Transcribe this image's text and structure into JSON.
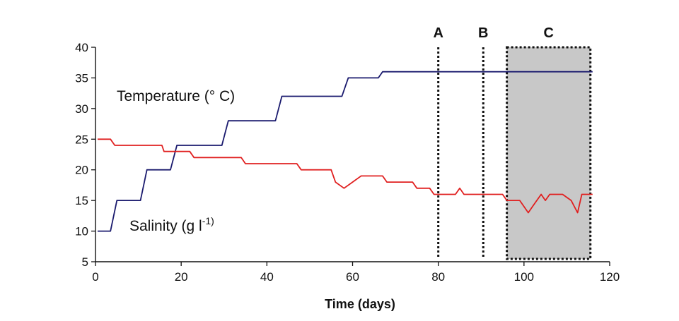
{
  "chart_data": {
    "type": "line",
    "xlabel": "Time (days)",
    "ylabel": "",
    "xlim": [
      0,
      120
    ],
    "ylim": [
      5,
      40
    ],
    "xticks": [
      0,
      20,
      40,
      60,
      80,
      100,
      120
    ],
    "yticks": [
      5,
      10,
      15,
      20,
      25,
      30,
      35,
      40
    ],
    "grid": false,
    "series": [
      {
        "name": "Temperature (° C)",
        "color": "#1a1a6e",
        "points": [
          [
            0.5,
            10
          ],
          [
            3.5,
            10
          ],
          [
            5,
            15
          ],
          [
            10.5,
            15
          ],
          [
            12,
            20
          ],
          [
            17.5,
            20
          ],
          [
            19,
            24
          ],
          [
            29.5,
            24
          ],
          [
            31,
            28
          ],
          [
            42,
            28
          ],
          [
            43.5,
            32
          ],
          [
            57.5,
            32
          ],
          [
            59,
            35
          ],
          [
            66,
            35
          ],
          [
            67,
            36
          ],
          [
            116,
            36
          ]
        ],
        "label_text": "Temperature (° C)"
      },
      {
        "name": "Salinity (g l-1)",
        "color": "#e02020",
        "points": [
          [
            0.5,
            25
          ],
          [
            3.5,
            25
          ],
          [
            4.5,
            24
          ],
          [
            15.5,
            24
          ],
          [
            16,
            23
          ],
          [
            22,
            23
          ],
          [
            23,
            22
          ],
          [
            34,
            22
          ],
          [
            35,
            21
          ],
          [
            47,
            21
          ],
          [
            48,
            20
          ],
          [
            55,
            20
          ],
          [
            56,
            18
          ],
          [
            58,
            17
          ],
          [
            60,
            18
          ],
          [
            62,
            19
          ],
          [
            67,
            19
          ],
          [
            68,
            18
          ],
          [
            74,
            18
          ],
          [
            75,
            17
          ],
          [
            78,
            17
          ],
          [
            79,
            16
          ],
          [
            84,
            16
          ],
          [
            85,
            17
          ],
          [
            86,
            16
          ],
          [
            90,
            16
          ],
          [
            91,
            16
          ],
          [
            95,
            16
          ],
          [
            96,
            15
          ],
          [
            99,
            15
          ],
          [
            101,
            13
          ],
          [
            102,
            14
          ],
          [
            104,
            16
          ],
          [
            105,
            15
          ],
          [
            106,
            16
          ],
          [
            109,
            16
          ],
          [
            111,
            15
          ],
          [
            112.5,
            13
          ],
          [
            113.5,
            16
          ],
          [
            116,
            16
          ]
        ],
        "label_text": "Salinity (g l",
        "label_sup": "-1)"
      }
    ],
    "markers": [
      {
        "label": "A",
        "x": 80
      },
      {
        "label": "B",
        "x": 90.5
      }
    ],
    "shaded_region": {
      "label": "C",
      "x_start": 96,
      "x_end": 115.5,
      "fill": "#c8c8c8"
    }
  }
}
